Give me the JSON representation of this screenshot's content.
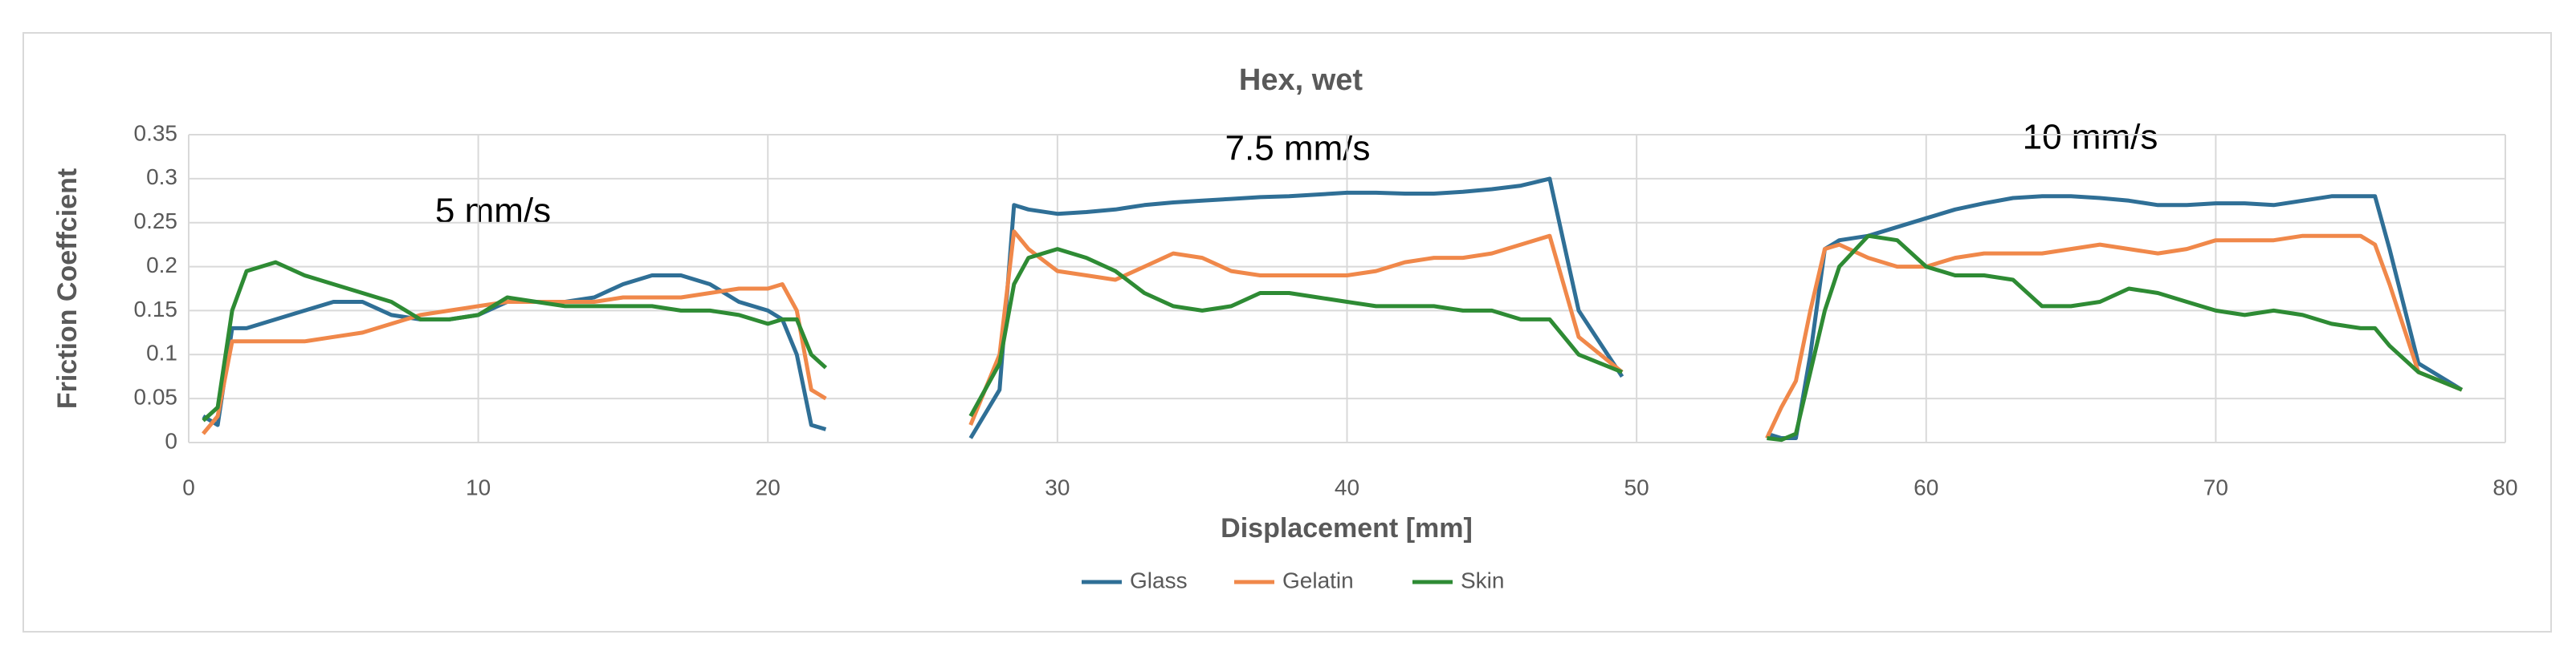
{
  "chart_data": {
    "type": "line",
    "title": "Hex, wet",
    "annotations": [
      "5 mm/s",
      "7.5 mm/s",
      "10 mm/s"
    ],
    "xlabel": "Displacement [mm]",
    "ylabel": "Friction Coeffcient",
    "x": [
      0.5,
      1,
      1.5,
      2,
      3,
      4,
      5,
      6,
      7,
      8,
      9,
      10,
      11,
      12,
      13,
      14,
      15,
      16,
      17,
      18,
      19,
      20,
      20.5,
      21,
      21.5,
      22,
      24.5,
      27,
      28,
      28.5,
      29,
      30,
      31,
      32,
      33,
      34,
      35,
      36,
      37,
      38,
      39,
      40,
      41,
      42,
      43,
      44,
      45,
      46,
      47,
      48,
      49.5,
      52,
      54.5,
      55,
      55.5,
      56,
      56.5,
      57,
      58,
      59,
      60,
      61,
      62,
      63,
      64,
      65,
      66,
      67,
      68,
      69,
      70,
      71,
      72,
      73,
      74,
      75,
      75.5,
      76,
      77,
      78.5
    ],
    "series": [
      {
        "name": "Glass",
        "color": "#2f6f96",
        "values": [
          0.03,
          0.02,
          0.13,
          0.13,
          0.14,
          0.15,
          0.16,
          0.16,
          0.145,
          0.14,
          0.14,
          0.145,
          0.16,
          0.16,
          0.16,
          0.165,
          0.18,
          0.19,
          0.19,
          0.18,
          0.16,
          0.15,
          0.14,
          0.1,
          0.02,
          0.015,
          null,
          0.005,
          0.06,
          0.27,
          0.265,
          0.26,
          0.262,
          0.265,
          0.27,
          0.273,
          0.275,
          0.277,
          0.279,
          0.28,
          0.282,
          0.284,
          0.284,
          0.283,
          0.283,
          0.285,
          0.288,
          0.292,
          0.3,
          0.15,
          0.075,
          null,
          0.01,
          0.005,
          0.005,
          0.1,
          0.22,
          0.23,
          0.235,
          0.245,
          0.255,
          0.265,
          0.272,
          0.278,
          0.28,
          0.28,
          0.278,
          0.275,
          0.27,
          0.27,
          0.272,
          0.272,
          0.27,
          0.275,
          0.28,
          0.28,
          0.28,
          0.22,
          0.09,
          0.06
        ]
      },
      {
        "name": "Gelatin",
        "color": "#f0884a",
        "values": [
          0.01,
          0.03,
          0.115,
          0.115,
          0.115,
          0.115,
          0.12,
          0.125,
          0.135,
          0.145,
          0.15,
          0.155,
          0.16,
          0.16,
          0.16,
          0.16,
          0.165,
          0.165,
          0.165,
          0.17,
          0.175,
          0.175,
          0.18,
          0.15,
          0.06,
          0.05,
          null,
          0.02,
          0.1,
          0.24,
          0.22,
          0.195,
          0.19,
          0.185,
          0.2,
          0.215,
          0.21,
          0.195,
          0.19,
          0.19,
          0.19,
          0.19,
          0.195,
          0.205,
          0.21,
          0.21,
          0.215,
          0.225,
          0.235,
          0.12,
          0.08,
          null,
          0.005,
          0.04,
          0.07,
          0.15,
          0.22,
          0.225,
          0.21,
          0.2,
          0.2,
          0.21,
          0.215,
          0.215,
          0.215,
          0.22,
          0.225,
          0.22,
          0.215,
          0.22,
          0.23,
          0.23,
          0.23,
          0.235,
          0.235,
          0.235,
          0.225,
          0.18,
          0.08,
          0.06
        ]
      },
      {
        "name": "Skin",
        "color": "#2e8b34",
        "values": [
          0.025,
          0.04,
          0.15,
          0.195,
          0.205,
          0.19,
          0.18,
          0.17,
          0.16,
          0.14,
          0.14,
          0.145,
          0.165,
          0.16,
          0.155,
          0.155,
          0.155,
          0.155,
          0.15,
          0.15,
          0.145,
          0.135,
          0.14,
          0.14,
          0.1,
          0.085,
          null,
          0.03,
          0.09,
          0.18,
          0.21,
          0.22,
          0.21,
          0.195,
          0.17,
          0.155,
          0.15,
          0.155,
          0.17,
          0.17,
          0.165,
          0.16,
          0.155,
          0.155,
          0.155,
          0.15,
          0.15,
          0.14,
          0.14,
          0.1,
          0.08,
          null,
          0.005,
          0.003,
          0.01,
          0.08,
          0.15,
          0.2,
          0.235,
          0.23,
          0.2,
          0.19,
          0.19,
          0.185,
          0.155,
          0.155,
          0.16,
          0.175,
          0.17,
          0.16,
          0.15,
          0.145,
          0.15,
          0.145,
          0.135,
          0.13,
          0.13,
          0.11,
          0.08,
          0.06
        ]
      }
    ],
    "xlim": [
      0,
      80
    ],
    "xticks": [
      0,
      10,
      20,
      30,
      40,
      50,
      60,
      70,
      80
    ],
    "ylim": [
      0,
      0.35
    ],
    "yticks": [
      0,
      0.05,
      0.1,
      0.15,
      0.2,
      0.25,
      0.3,
      0.35
    ],
    "grid": true,
    "legend": "bottom"
  }
}
